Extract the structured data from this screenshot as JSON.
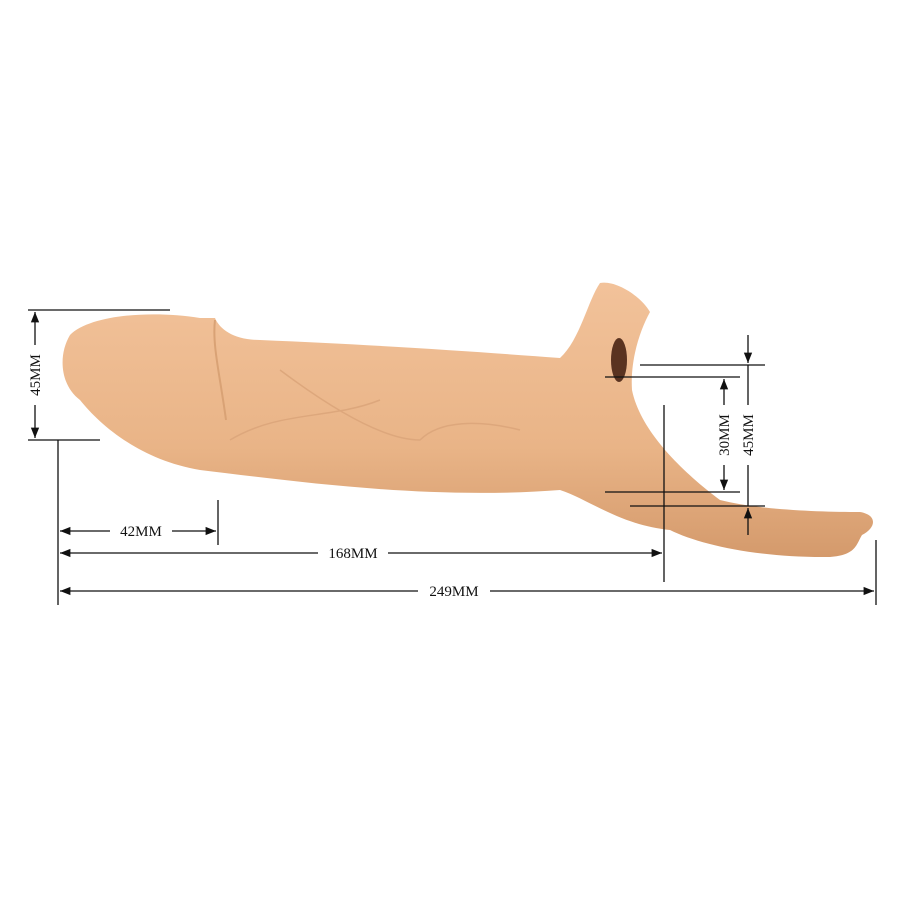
{
  "product": {
    "color": "#E9B487",
    "shade": "#D49A6C",
    "hole_color": "#5A3320"
  },
  "dimensions": {
    "head_diameter": "45MM",
    "head_length": "42MM",
    "shaft_length": "168MM",
    "total_length": "249MM",
    "ring_inner": "30MM",
    "ring_outer": "45MM"
  }
}
